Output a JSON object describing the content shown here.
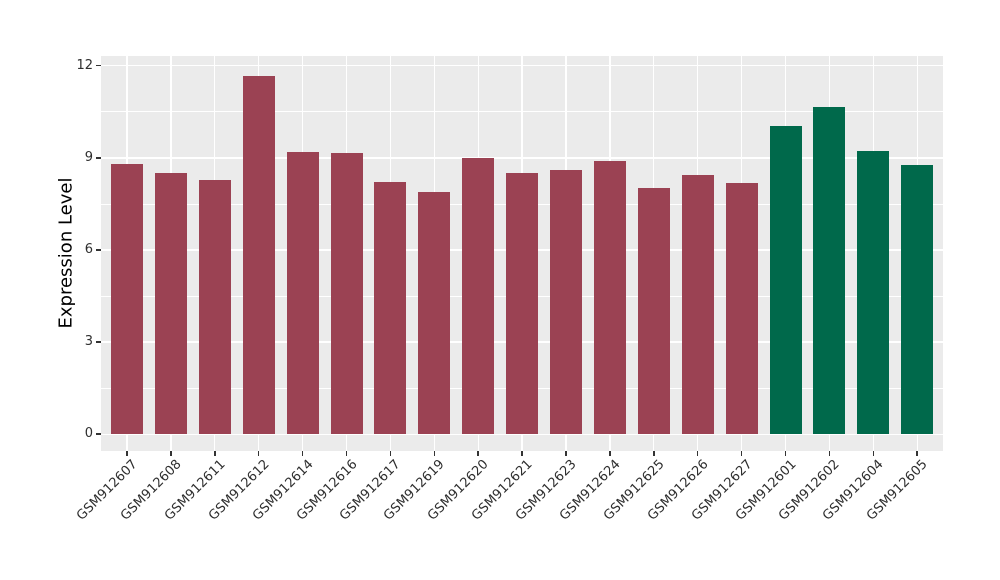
{
  "figure": {
    "background": "#ffffff",
    "panel_background": "#ebebeb",
    "gridline_color": "#ffffff",
    "axis_text_color": "#2e2e2e",
    "tick_mark_color": "#333333",
    "axis_title_color": "#000000"
  },
  "chart_data": {
    "type": "bar",
    "title": "",
    "xlabel": "",
    "ylabel": "Expression Level",
    "ylim": [
      0,
      12.3
    ],
    "yticks": [
      0,
      3,
      6,
      9,
      12
    ],
    "yticks_minor": [
      1.5,
      4.5,
      7.5,
      10.5
    ],
    "grid": "on",
    "legend": "none",
    "x_label_angle_deg": 45,
    "categories": [
      "GSM912607",
      "GSM912608",
      "GSM912611",
      "GSM912612",
      "GSM912614",
      "GSM912616",
      "GSM912617",
      "GSM912619",
      "GSM912620",
      "GSM912621",
      "GSM912623",
      "GSM912624",
      "GSM912625",
      "GSM912626",
      "GSM912627",
      "GSM912601",
      "GSM912602",
      "GSM912604",
      "GSM912605"
    ],
    "values": [
      8.8,
      8.5,
      8.29,
      11.67,
      9.18,
      9.17,
      8.2,
      7.9,
      8.99,
      8.52,
      8.59,
      8.9,
      8.02,
      8.45,
      8.18,
      10.04,
      10.66,
      9.23,
      8.77
    ],
    "groups": [
      "group1",
      "group1",
      "group1",
      "group1",
      "group1",
      "group1",
      "group1",
      "group1",
      "group1",
      "group1",
      "group1",
      "group1",
      "group1",
      "group1",
      "group1",
      "group2",
      "group2",
      "group2",
      "group2"
    ],
    "group_colors": {
      "group1": "#9b4253",
      "group2": "#00694b"
    }
  }
}
